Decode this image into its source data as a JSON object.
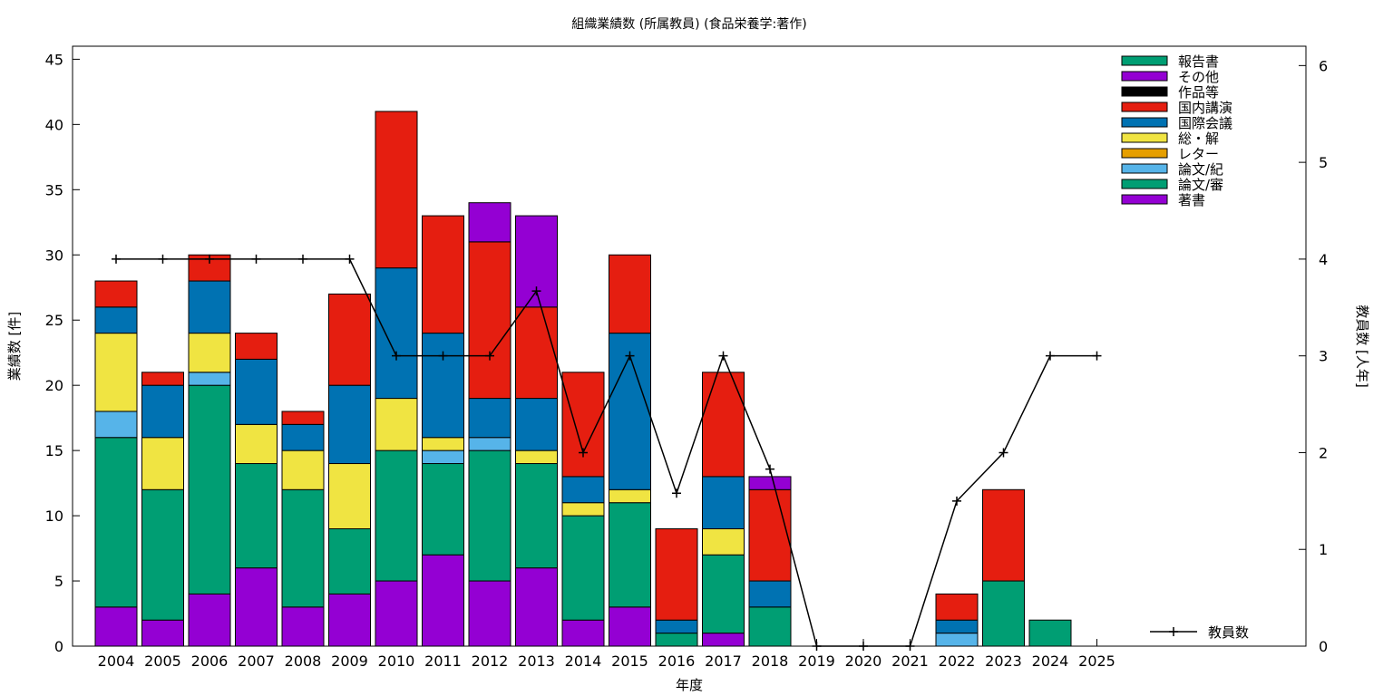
{
  "chart_data": {
    "type": "bar",
    "stacked": true,
    "title": "組織業績数 (所属教員) (食品栄養学:著作)",
    "xlabel": "年度",
    "ylabel": "業績数 [件]",
    "y2label": "教員数 [人年]",
    "ylim": [
      0,
      46
    ],
    "y2lim": [
      0,
      6.2
    ],
    "yticks": [
      "0",
      "5",
      "10",
      "15",
      "20",
      "25",
      "30",
      "35",
      "40",
      "45"
    ],
    "y2ticks": [
      "0",
      "1",
      "2",
      "3",
      "4",
      "5",
      "6"
    ],
    "categories": [
      "2004",
      "2005",
      "2006",
      "2007",
      "2008",
      "2009",
      "2010",
      "2011",
      "2012",
      "2013",
      "2014",
      "2015",
      "2016",
      "2017",
      "2018",
      "2019",
      "2020",
      "2021",
      "2022",
      "2023",
      "2024",
      "2025"
    ],
    "series": [
      {
        "name": "著書",
        "color": "#9400d3",
        "values": [
          3,
          2,
          4,
          6,
          3,
          4,
          5,
          7,
          5,
          6,
          2,
          3,
          0,
          1,
          0,
          0,
          0,
          0,
          0,
          0,
          0,
          0
        ]
      },
      {
        "name": "論文/審",
        "color": "#009e73",
        "values": [
          13,
          10,
          16,
          8,
          9,
          5,
          10,
          7,
          10,
          8,
          8,
          8,
          1,
          6,
          3,
          0,
          0,
          0,
          0,
          5,
          2,
          0
        ]
      },
      {
        "name": "論文/紀",
        "color": "#56b4e9",
        "values": [
          2,
          0,
          1,
          0,
          0,
          0,
          0,
          1,
          1,
          0,
          0,
          0,
          0,
          0,
          0,
          0,
          0,
          0,
          1,
          0,
          0,
          0
        ]
      },
      {
        "name": "レター",
        "color": "#e69f00",
        "values": [
          0,
          0,
          0,
          0,
          0,
          0,
          0,
          0,
          0,
          0,
          0,
          0,
          0,
          0,
          0,
          0,
          0,
          0,
          0,
          0,
          0,
          0
        ]
      },
      {
        "name": "総・解",
        "color": "#f0e442",
        "values": [
          6,
          4,
          3,
          3,
          3,
          5,
          4,
          1,
          0,
          1,
          1,
          1,
          0,
          2,
          0,
          0,
          0,
          0,
          0,
          0,
          0,
          0
        ]
      },
      {
        "name": "国際会議",
        "color": "#0072b2",
        "values": [
          2,
          4,
          4,
          5,
          2,
          6,
          10,
          8,
          3,
          4,
          2,
          12,
          1,
          4,
          2,
          0,
          0,
          0,
          1,
          0,
          0,
          0
        ]
      },
      {
        "name": "国内講演",
        "color": "#e51e10",
        "values": [
          2,
          1,
          2,
          2,
          1,
          7,
          12,
          9,
          12,
          7,
          8,
          6,
          7,
          8,
          7,
          0,
          0,
          0,
          2,
          7,
          0,
          0
        ]
      },
      {
        "name": "作品等",
        "color": "#000000",
        "values": [
          0,
          0,
          0,
          0,
          0,
          0,
          0,
          0,
          0,
          0,
          0,
          0,
          0,
          0,
          0,
          0,
          0,
          0,
          0,
          0,
          0,
          0
        ]
      },
      {
        "name": "その他",
        "color": "#9400d3",
        "values": [
          0,
          0,
          0,
          0,
          0,
          0,
          0,
          0,
          3,
          7,
          0,
          0,
          0,
          0,
          1,
          0,
          0,
          0,
          0,
          0,
          0,
          0
        ]
      },
      {
        "name": "報告書",
        "color": "#009e73",
        "values": [
          0,
          0,
          0,
          0,
          0,
          0,
          0,
          0,
          0,
          0,
          0,
          0,
          0,
          0,
          0,
          0,
          0,
          0,
          0,
          0,
          0,
          0
        ]
      }
    ],
    "legend_order": [
      "報告書",
      "その他",
      "作品等",
      "国内講演",
      "国際会議",
      "総・解",
      "レター",
      "論文/紀",
      "論文/審",
      "著書"
    ],
    "legend_position": "top-right",
    "line": {
      "name": "教員数",
      "axis": "right",
      "color": "#000000",
      "values": [
        4,
        4,
        4,
        4,
        4,
        4,
        3,
        3,
        3,
        3.67,
        2,
        3,
        1.58,
        3,
        1.83,
        0,
        0,
        0,
        1.5,
        2,
        3,
        3
      ]
    },
    "grid": false
  }
}
